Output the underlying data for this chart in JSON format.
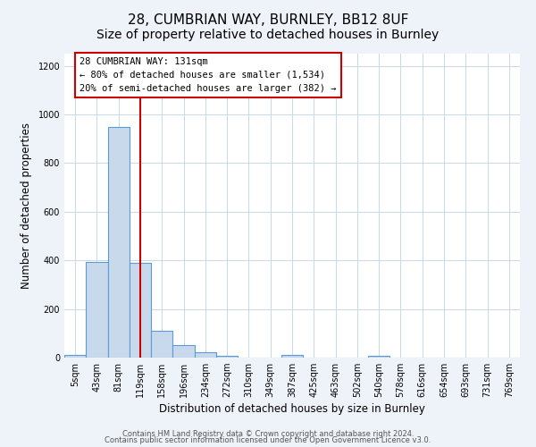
{
  "title": "28, CUMBRIAN WAY, BURNLEY, BB12 8UF",
  "subtitle": "Size of property relative to detached houses in Burnley",
  "xlabel": "Distribution of detached houses by size in Burnley",
  "ylabel": "Number of detached properties",
  "bar_labels": [
    "5sqm",
    "43sqm",
    "81sqm",
    "119sqm",
    "158sqm",
    "196sqm",
    "234sqm",
    "272sqm",
    "310sqm",
    "349sqm",
    "387sqm",
    "425sqm",
    "463sqm",
    "502sqm",
    "540sqm",
    "578sqm",
    "616sqm",
    "654sqm",
    "693sqm",
    "731sqm",
    "769sqm"
  ],
  "bar_values": [
    10,
    395,
    950,
    390,
    110,
    52,
    22,
    8,
    0,
    0,
    10,
    0,
    0,
    0,
    8,
    0,
    0,
    0,
    0,
    0,
    0
  ],
  "bar_color": "#c9d9ec",
  "bar_edgecolor": "#5b9bd5",
  "bar_linewidth": 0.8,
  "redline_x": 3,
  "annotation_line1": "28 CUMBRIAN WAY: 131sqm",
  "annotation_line2": "← 80% of detached houses are smaller (1,534)",
  "annotation_line3": "20% of semi-detached houses are larger (382) →",
  "box_color": "#ffffff",
  "box_edgecolor": "#cc0000",
  "vline_color": "#cc0000",
  "ylim": [
    0,
    1250
  ],
  "yticks": [
    0,
    200,
    400,
    600,
    800,
    1000,
    1200
  ],
  "footer1": "Contains HM Land Registry data © Crown copyright and database right 2024.",
  "footer2": "Contains public sector information licensed under the Open Government Licence v3.0.",
  "bg_color": "#eef2f9",
  "plot_bg_color": "#ffffff",
  "grid_color": "#c8d8e8",
  "title_fontsize": 11,
  "xlabel_fontsize": 8.5,
  "ylabel_fontsize": 8.5,
  "tick_fontsize": 7,
  "footer_fontsize": 6,
  "annot_fontsize": 7.5
}
